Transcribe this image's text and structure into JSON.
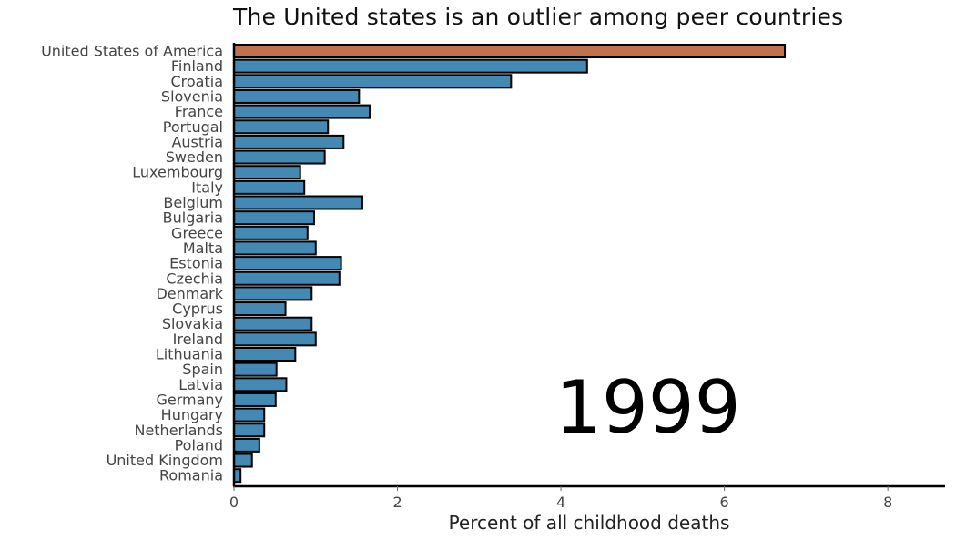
{
  "chart_data": {
    "type": "bar",
    "orientation": "horizontal",
    "title": "The United states is an outlier among peer countries",
    "xlabel": "Percent of all childhood deaths",
    "ylabel": "",
    "xlim": [
      0,
      8.7
    ],
    "xticks": [
      0,
      2,
      4,
      6,
      8
    ],
    "year_label": "1999",
    "grid": false,
    "categories": [
      "United States of America",
      "Finland",
      "Croatia",
      "Slovenia",
      "France",
      "Portugal",
      "Austria",
      "Sweden",
      "Luxembourg",
      "Italy",
      "Belgium",
      "Bulgaria",
      "Greece",
      "Malta",
      "Estonia",
      "Czechia",
      "Denmark",
      "Cyprus",
      "Slovakia",
      "Ireland",
      "Lithuania",
      "Spain",
      "Latvia",
      "Germany",
      "Hungary",
      "Netherlands",
      "Poland",
      "United Kingdom",
      "Romania"
    ],
    "values": [
      6.74,
      4.32,
      3.39,
      1.53,
      1.66,
      1.15,
      1.34,
      1.11,
      0.81,
      0.86,
      1.57,
      0.98,
      0.9,
      1.0,
      1.31,
      1.29,
      0.95,
      0.63,
      0.95,
      1.0,
      0.75,
      0.52,
      0.64,
      0.51,
      0.37,
      0.37,
      0.31,
      0.22,
      0.08
    ],
    "colors": {
      "highlight": "#C0714E",
      "default": "#4389B3",
      "outline": "#000000",
      "axis": "#000000",
      "label_text": "#444444"
    }
  }
}
